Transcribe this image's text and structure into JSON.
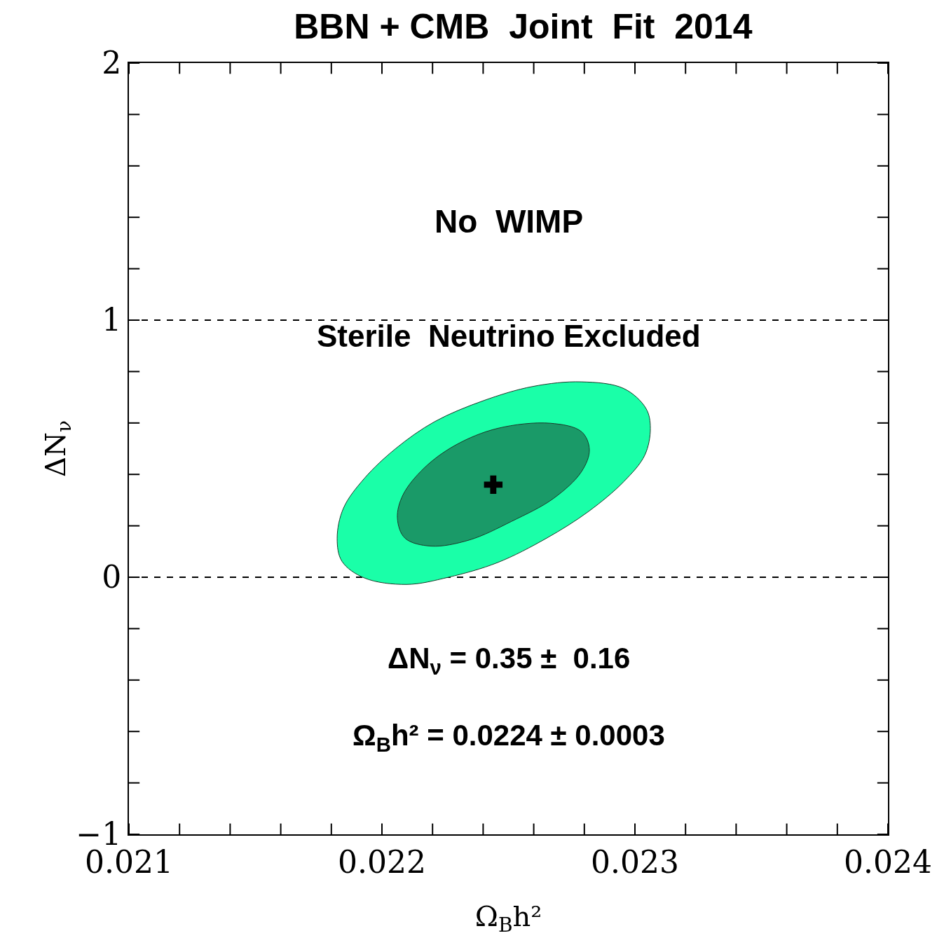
{
  "chart_data": {
    "type": "area",
    "title": "BBN + CMB  Joint  Fit  2014",
    "xlabel": "Ω$_{B}$h²",
    "ylabel": "ΔN$_{ν}$",
    "xlim": [
      0.021,
      0.024
    ],
    "ylim": [
      -1,
      2
    ],
    "xticks": [
      {
        "value": 0.021,
        "label": "0.021"
      },
      {
        "value": 0.0212,
        "label": null
      },
      {
        "value": 0.0214,
        "label": null
      },
      {
        "value": 0.0216,
        "label": null
      },
      {
        "value": 0.0218,
        "label": null
      },
      {
        "value": 0.022,
        "label": "0.022"
      },
      {
        "value": 0.0222,
        "label": null
      },
      {
        "value": 0.0224,
        "label": null
      },
      {
        "value": 0.0226,
        "label": null
      },
      {
        "value": 0.0228,
        "label": null
      },
      {
        "value": 0.023,
        "label": "0.023"
      },
      {
        "value": 0.0232,
        "label": null
      },
      {
        "value": 0.0234,
        "label": null
      },
      {
        "value": 0.0236,
        "label": null
      },
      {
        "value": 0.0238,
        "label": null
      },
      {
        "value": 0.024,
        "label": "0.024"
      }
    ],
    "yticks": [
      {
        "value": -1,
        "label": "−1"
      },
      {
        "value": -0.8,
        "label": null
      },
      {
        "value": -0.6,
        "label": null
      },
      {
        "value": -0.4,
        "label": null
      },
      {
        "value": -0.2,
        "label": null
      },
      0,
      {
        "value": 0.2,
        "label": null
      },
      {
        "value": 0.4,
        "label": null
      },
      {
        "value": 0.6,
        "label": null
      },
      {
        "value": 0.8,
        "label": null
      },
      1,
      {
        "value": 1.2,
        "label": null
      },
      {
        "value": 1.4,
        "label": null
      },
      {
        "value": 1.6,
        "label": null
      },
      {
        "value": 1.8,
        "label": null
      },
      2
    ],
    "grid": false,
    "series": [
      {
        "color": "#1affa8",
        "x": [
          0.021823,
          0.021848,
          0.021931,
          0.022055,
          0.022208,
          0.022402,
          0.022596,
          0.022789,
          0.022956,
          0.023044,
          0.023061,
          0.023039,
          0.022956,
          0.022817,
          0.022651,
          0.022457,
          0.022263,
          0.022097,
          0.021931,
          0.021842,
          0.021823
        ],
        "values": [
          0.152,
          0.269,
          0.385,
          0.501,
          0.605,
          0.687,
          0.742,
          0.76,
          0.734,
          0.656,
          0.579,
          0.475,
          0.372,
          0.256,
          0.152,
          0.057,
          0.0,
          -0.028,
          -0.003,
          0.062,
          0.152
        ]
      },
      {
        "color": "#1a9a68",
        "x": [
          0.022061,
          0.022083,
          0.022166,
          0.022291,
          0.022457,
          0.022665,
          0.022789,
          0.02282,
          0.022789,
          0.022679,
          0.022512,
          0.022346,
          0.022194,
          0.022091,
          0.022061
        ],
        "values": [
          0.23,
          0.32,
          0.424,
          0.514,
          0.579,
          0.599,
          0.566,
          0.496,
          0.411,
          0.307,
          0.217,
          0.145,
          0.121,
          0.152,
          0.23
        ]
      },
      {
        "type": "scatter",
        "color": "#000000",
        "marker": "cross",
        "x": [
          0.02244
        ],
        "values": [
          0.36
        ]
      }
    ],
    "ref_lines": [
      {
        "axis": "y",
        "value": 0,
        "line_style": "dashed",
        "color": "#000000"
      },
      {
        "axis": "y",
        "value": 1,
        "line_style": "dashed",
        "color": "#000000"
      }
    ],
    "annotations": [
      "No  WIMP",
      "Sterile  Neutrino Excluded",
      "ΔN$_{ν}$ = 0.35 ±  0.16",
      "Ω$_{B}$h² = 0.0224 ± 0.0003"
    ]
  }
}
